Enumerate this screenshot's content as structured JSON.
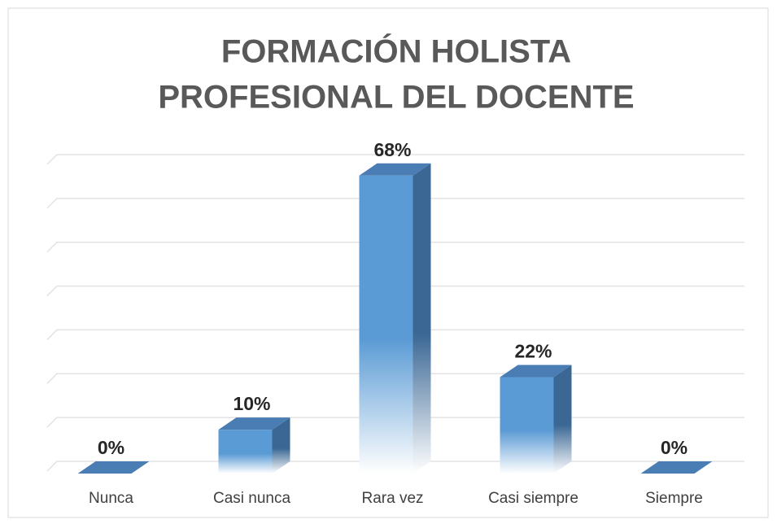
{
  "chart_data": {
    "type": "bar3d",
    "title": [
      "FORMACIÓN HOLISTA",
      "PROFESIONAL DEL DOCENTE"
    ],
    "categories": [
      "Nunca",
      "Casi nunca",
      "Rara vez",
      "Casi siempre",
      "Siempre"
    ],
    "values": [
      0,
      10,
      68,
      22,
      0
    ],
    "value_labels": [
      "0%",
      "10%",
      "68%",
      "22%",
      "0%"
    ],
    "color": "#5b9bd5",
    "ylim": [
      0,
      70
    ],
    "yticks": [
      0,
      10,
      20,
      30,
      40,
      50,
      60,
      70
    ],
    "grid": true
  }
}
